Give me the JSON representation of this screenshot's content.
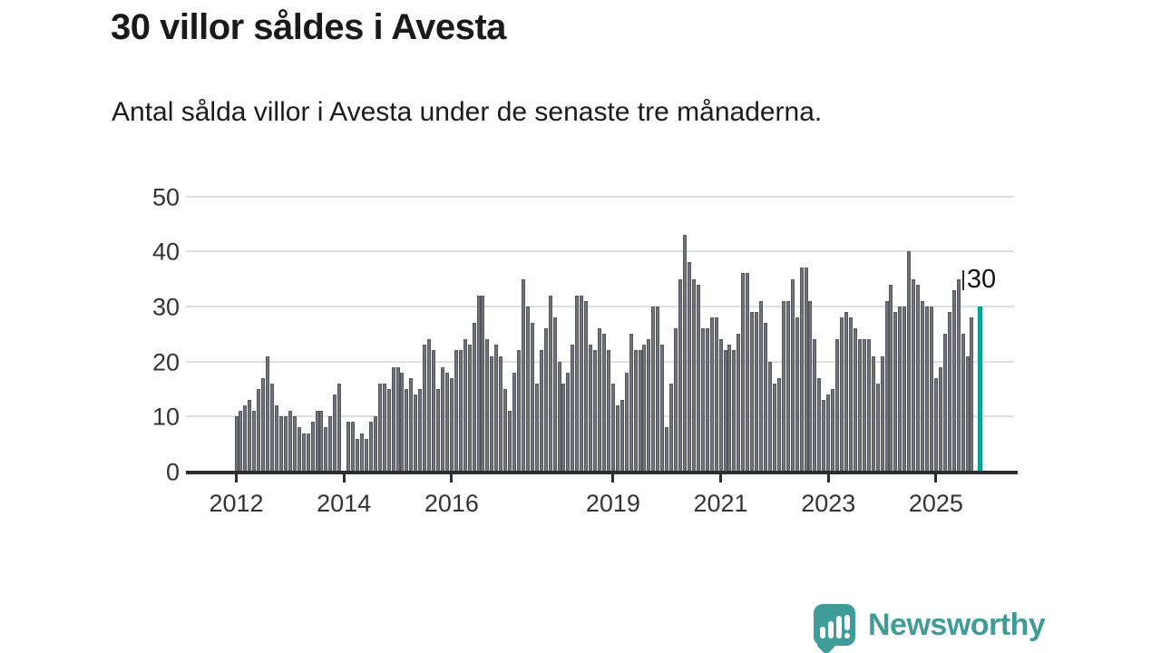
{
  "header": {
    "title": "30 villor såldes i Avesta",
    "subtitle": "Antal sålda villor i Avesta under de senaste tre månaderna."
  },
  "chart_data": {
    "type": "bar",
    "title": "30 villor såldes i Avesta",
    "xlabel": "",
    "ylabel": "",
    "ylim": [
      0,
      50
    ],
    "grid": "horizontal",
    "x_start": "2012-01",
    "x_end": "2025-10",
    "y_ticks": [
      0,
      10,
      20,
      30,
      40,
      50
    ],
    "x_ticks": [
      {
        "label": "2012",
        "month_index": 0
      },
      {
        "label": "2014",
        "month_index": 24
      },
      {
        "label": "2016",
        "month_index": 48
      },
      {
        "label": "2019",
        "month_index": 84
      },
      {
        "label": "2021",
        "month_index": 108
      },
      {
        "label": "2023",
        "month_index": 132
      },
      {
        "label": "2025",
        "month_index": 156
      }
    ],
    "values": [
      10,
      11,
      12,
      13,
      11,
      15,
      17,
      21,
      16,
      12,
      10,
      10,
      11,
      10,
      8,
      7,
      7,
      9,
      11,
      11,
      8,
      10,
      14,
      16,
      0,
      9,
      9,
      6,
      7,
      6,
      9,
      10,
      16,
      16,
      15,
      19,
      19,
      18,
      15,
      17,
      14,
      15,
      23,
      24,
      22,
      15,
      19,
      18,
      17,
      22,
      22,
      24,
      23,
      27,
      32,
      32,
      24,
      21,
      23,
      21,
      15,
      11,
      18,
      22,
      35,
      30,
      27,
      16,
      22,
      26,
      32,
      28,
      20,
      16,
      18,
      23,
      32,
      32,
      31,
      23,
      22,
      26,
      25,
      22,
      16,
      12,
      13,
      18,
      25,
      22,
      22,
      23,
      24,
      30,
      30,
      23,
      8,
      16,
      26,
      35,
      43,
      38,
      35,
      34,
      26,
      26,
      28,
      28,
      24,
      22,
      23,
      22,
      25,
      36,
      36,
      29,
      29,
      31,
      27,
      20,
      16,
      17,
      31,
      31,
      35,
      28,
      37,
      37,
      31,
      24,
      17,
      13,
      14,
      15,
      24,
      28,
      29,
      28,
      26,
      24,
      24,
      24,
      21,
      16,
      21,
      31,
      34,
      29,
      30,
      30,
      40,
      35,
      34,
      31,
      30,
      30,
      17,
      19,
      25,
      29,
      33,
      35,
      25,
      21,
      28
    ],
    "latest": {
      "value": 30,
      "annotation": "30"
    },
    "colors": {
      "bar": "#73737b",
      "bar_edge": "#54545c",
      "highlight": "#00aba2",
      "grid": "#dedede",
      "axis": "#2e2e2e",
      "axis_text": "#333333",
      "title_text": "#1a1a1a"
    }
  },
  "footer": {
    "brand": "Newsworthy",
    "brand_color": "#3f9c97"
  }
}
